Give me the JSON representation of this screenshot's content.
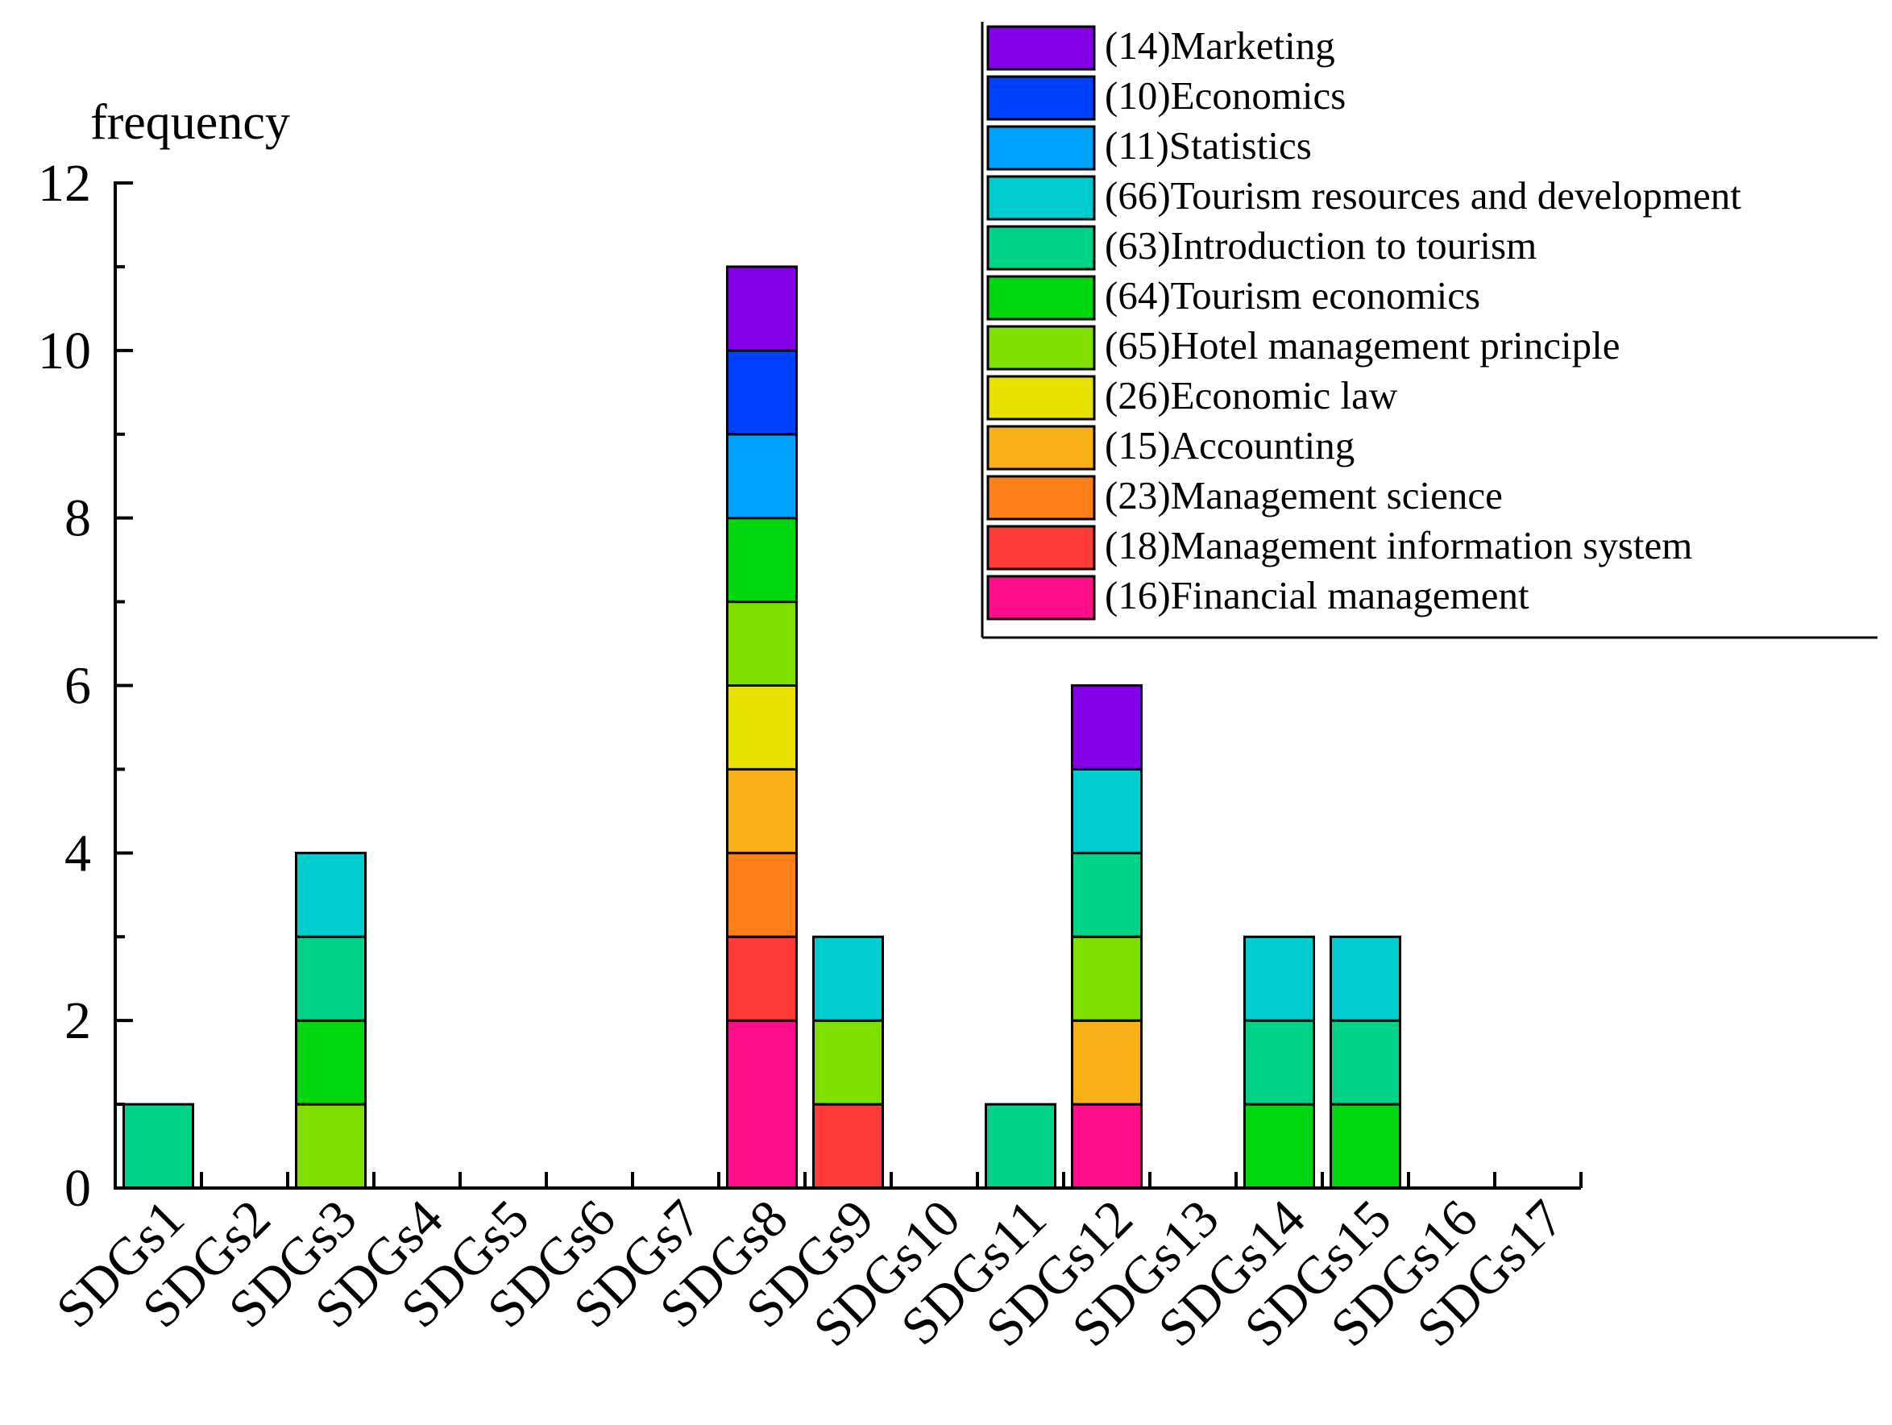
{
  "chart_data": {
    "type": "bar",
    "stacked": true,
    "ylabel": "frequency",
    "xlabel": "",
    "title": "",
    "ylim": [
      0,
      12
    ],
    "yticks": [
      0,
      2,
      4,
      6,
      8,
      10,
      12
    ],
    "legend_position": "top-right",
    "categories": [
      "SDGs1",
      "SDGs2",
      "SDGs3",
      "SDGs4",
      "SDGs5",
      "SDGs6",
      "SDGs7",
      "SDGs8",
      "SDGs9",
      "SDGs10",
      "SDGs11",
      "SDGs12",
      "SDGs13",
      "SDGs14",
      "SDGs15",
      "SDGs16",
      "SDGs17"
    ],
    "series": [
      {
        "name": "(16)Financial management",
        "color": "#FF0D8A",
        "values": [
          0,
          0,
          0,
          0,
          0,
          0,
          0,
          2,
          0,
          0,
          0,
          1,
          0,
          0,
          0,
          0,
          0
        ]
      },
      {
        "name": "(18)Management information system",
        "color": "#FF3A3A",
        "values": [
          0,
          0,
          0,
          0,
          0,
          0,
          0,
          1,
          1,
          0,
          0,
          0,
          0,
          0,
          0,
          0,
          0
        ]
      },
      {
        "name": "(23)Management science",
        "color": "#FF7F1A",
        "values": [
          0,
          0,
          0,
          0,
          0,
          0,
          0,
          1,
          0,
          0,
          0,
          0,
          0,
          0,
          0,
          0,
          0
        ]
      },
      {
        "name": "(15)Accounting",
        "color": "#F8B018",
        "values": [
          0,
          0,
          0,
          0,
          0,
          0,
          0,
          1,
          0,
          0,
          0,
          1,
          0,
          0,
          0,
          0,
          0
        ]
      },
      {
        "name": "(26)Economic law",
        "color": "#E8E000",
        "values": [
          0,
          0,
          0,
          0,
          0,
          0,
          0,
          1,
          0,
          0,
          0,
          0,
          0,
          0,
          0,
          0,
          0
        ]
      },
      {
        "name": "(65)Hotel management principle",
        "color": "#7FE000",
        "values": [
          0,
          0,
          1,
          0,
          0,
          0,
          0,
          1,
          1,
          0,
          0,
          1,
          0,
          0,
          0,
          0,
          0
        ]
      },
      {
        "name": "(64)Tourism economics",
        "color": "#00D70E",
        "values": [
          0,
          0,
          1,
          0,
          0,
          0,
          0,
          1,
          0,
          0,
          0,
          0,
          0,
          1,
          1,
          0,
          0
        ]
      },
      {
        "name": "(63)Introduction to tourism",
        "color": "#00D287",
        "values": [
          1,
          0,
          1,
          0,
          0,
          0,
          0,
          0,
          0,
          0,
          1,
          1,
          0,
          1,
          1,
          0,
          0
        ]
      },
      {
        "name": "(66)Tourism resources and development",
        "color": "#00CDD0",
        "values": [
          0,
          0,
          1,
          0,
          0,
          0,
          0,
          0,
          1,
          0,
          0,
          1,
          0,
          1,
          1,
          0,
          0
        ]
      },
      {
        "name": "(11)Statistics",
        "color": "#00A2FF",
        "values": [
          0,
          0,
          0,
          0,
          0,
          0,
          0,
          1,
          0,
          0,
          0,
          0,
          0,
          0,
          0,
          0,
          0
        ]
      },
      {
        "name": "(10)Economics",
        "color": "#0040FF",
        "values": [
          0,
          0,
          0,
          0,
          0,
          0,
          0,
          1,
          0,
          0,
          0,
          0,
          0,
          0,
          0,
          0,
          0
        ]
      },
      {
        "name": "(14)Marketing",
        "color": "#8400E8",
        "values": [
          0,
          0,
          0,
          0,
          0,
          0,
          0,
          1,
          0,
          0,
          0,
          1,
          0,
          0,
          0,
          0,
          0
        ]
      }
    ],
    "legend_order": [
      "(14)Marketing",
      "(10)Economics",
      "(11)Statistics",
      "(66)Tourism resources and development",
      "(63)Introduction to tourism",
      "(64)Tourism economics",
      "(65)Hotel management principle",
      "(26)Economic law",
      "(15)Accounting",
      "(23)Management science",
      "(18)Management information system",
      "(16)Financial management"
    ]
  }
}
